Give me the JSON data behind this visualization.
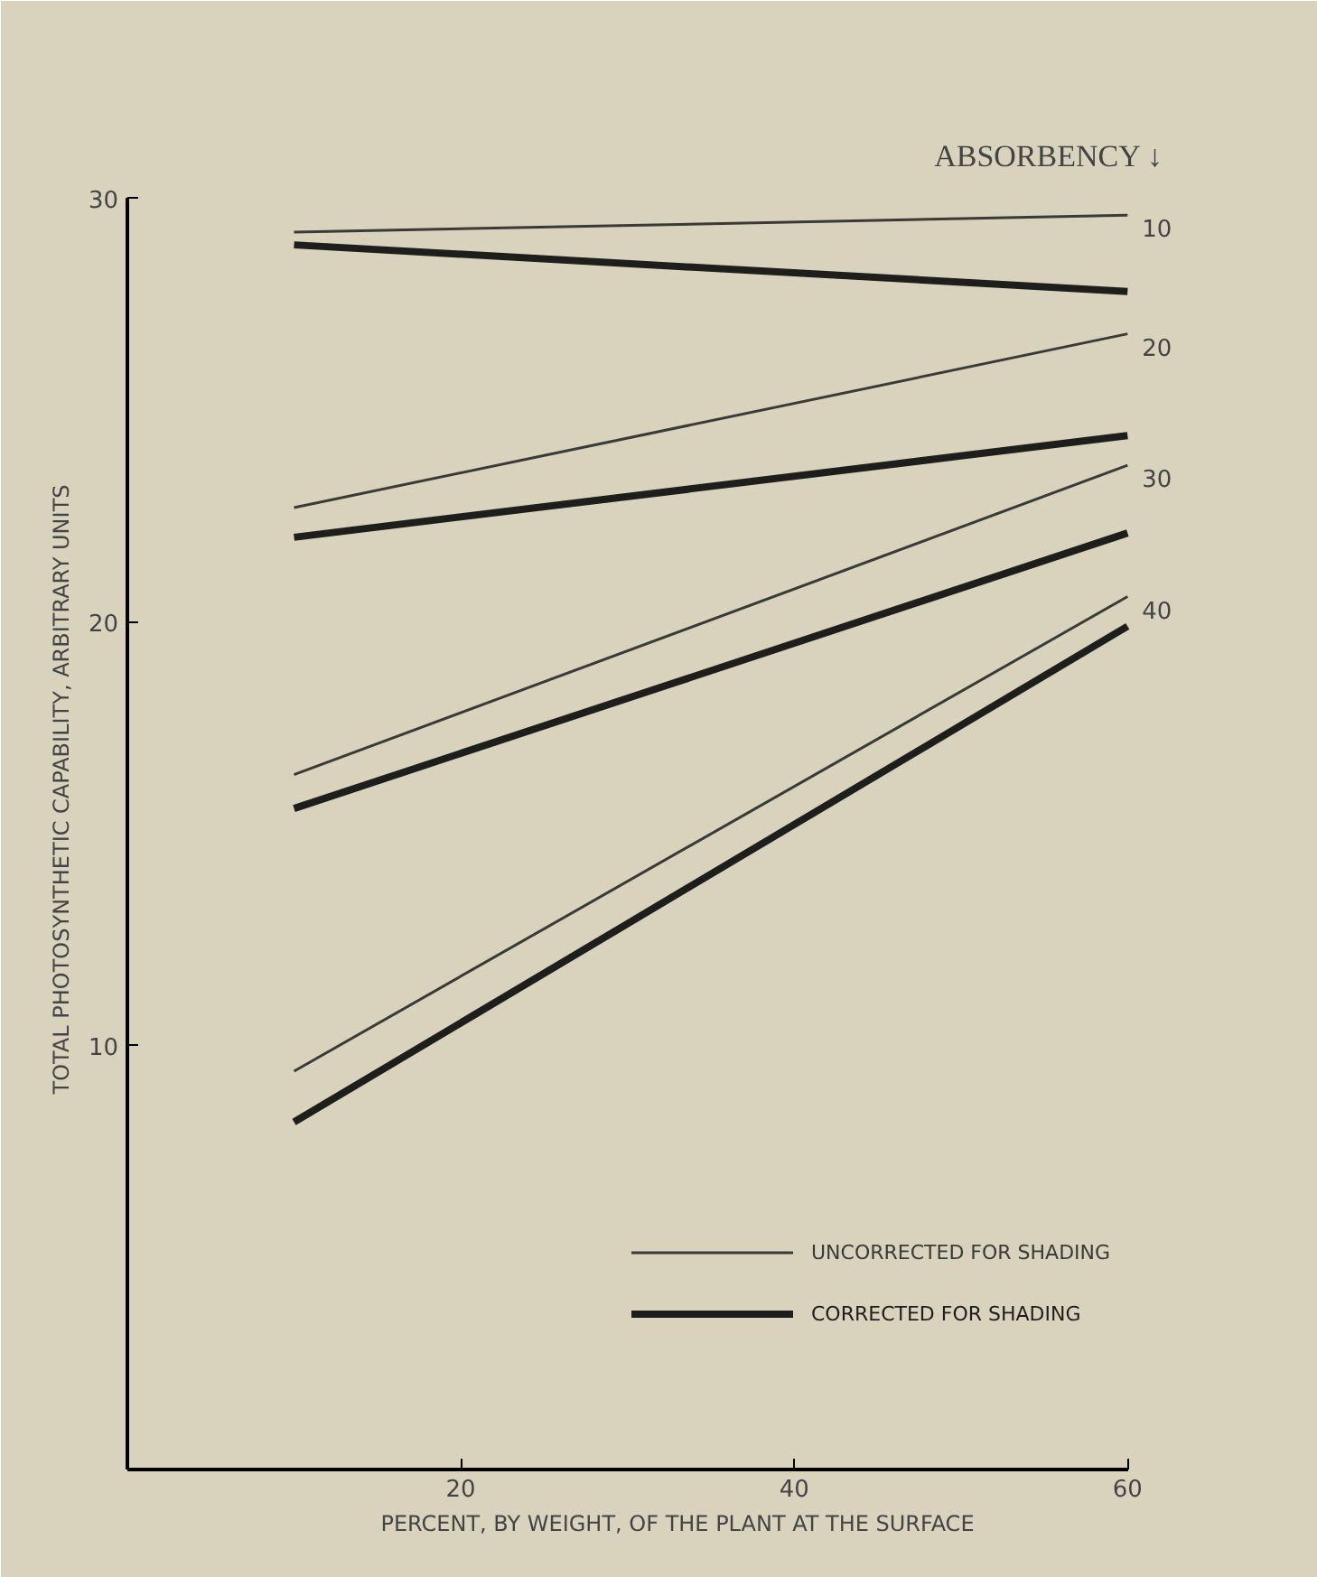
{
  "chart_data": {
    "type": "line",
    "xlabel": "PERCENT, BY WEIGHT, OF THE PLANT AT THE SURFACE",
    "ylabel": "TOTAL PHOTOSYNTHETIC CAPABILITY, ARBITRARY UNITS",
    "x": [
      10,
      60
    ],
    "series": [
      {
        "name": "UNCORRECTED FOR SHADING",
        "color": "#3a3a36",
        "values": [
          29.2,
          29.6
        ]
      },
      {
        "name": "CORRECTED FOR SHADING",
        "color": "#1e1e1c",
        "values": [
          28.9,
          27.8
        ]
      },
      {
        "color": "#3a3a36",
        "values": [
          22.7,
          26.8
        ]
      },
      {
        "color": "#1e1e1c",
        "values": [
          22.0,
          24.4
        ]
      },
      {
        "color": "#3a3a36",
        "values": [
          16.4,
          23.7
        ]
      },
      {
        "color": "#1e1e1c",
        "values": [
          15.6,
          22.1
        ]
      },
      {
        "color": "#3a3a36",
        "values": [
          9.4,
          20.6
        ]
      },
      {
        "color": "#1e1e1c",
        "values": [
          8.2,
          19.9
        ]
      }
    ],
    "annotations": [
      "ABSORBENCY ↓",
      "10",
      "20",
      "30",
      "40"
    ],
    "xlim": [
      0,
      60
    ],
    "ylim": [
      0,
      30
    ],
    "xticks": [
      20,
      40,
      60
    ],
    "yticks": [
      10,
      20,
      30
    ],
    "grid": false,
    "legend": "bottom right",
    "marker": "none",
    "line_style": "solid"
  }
}
